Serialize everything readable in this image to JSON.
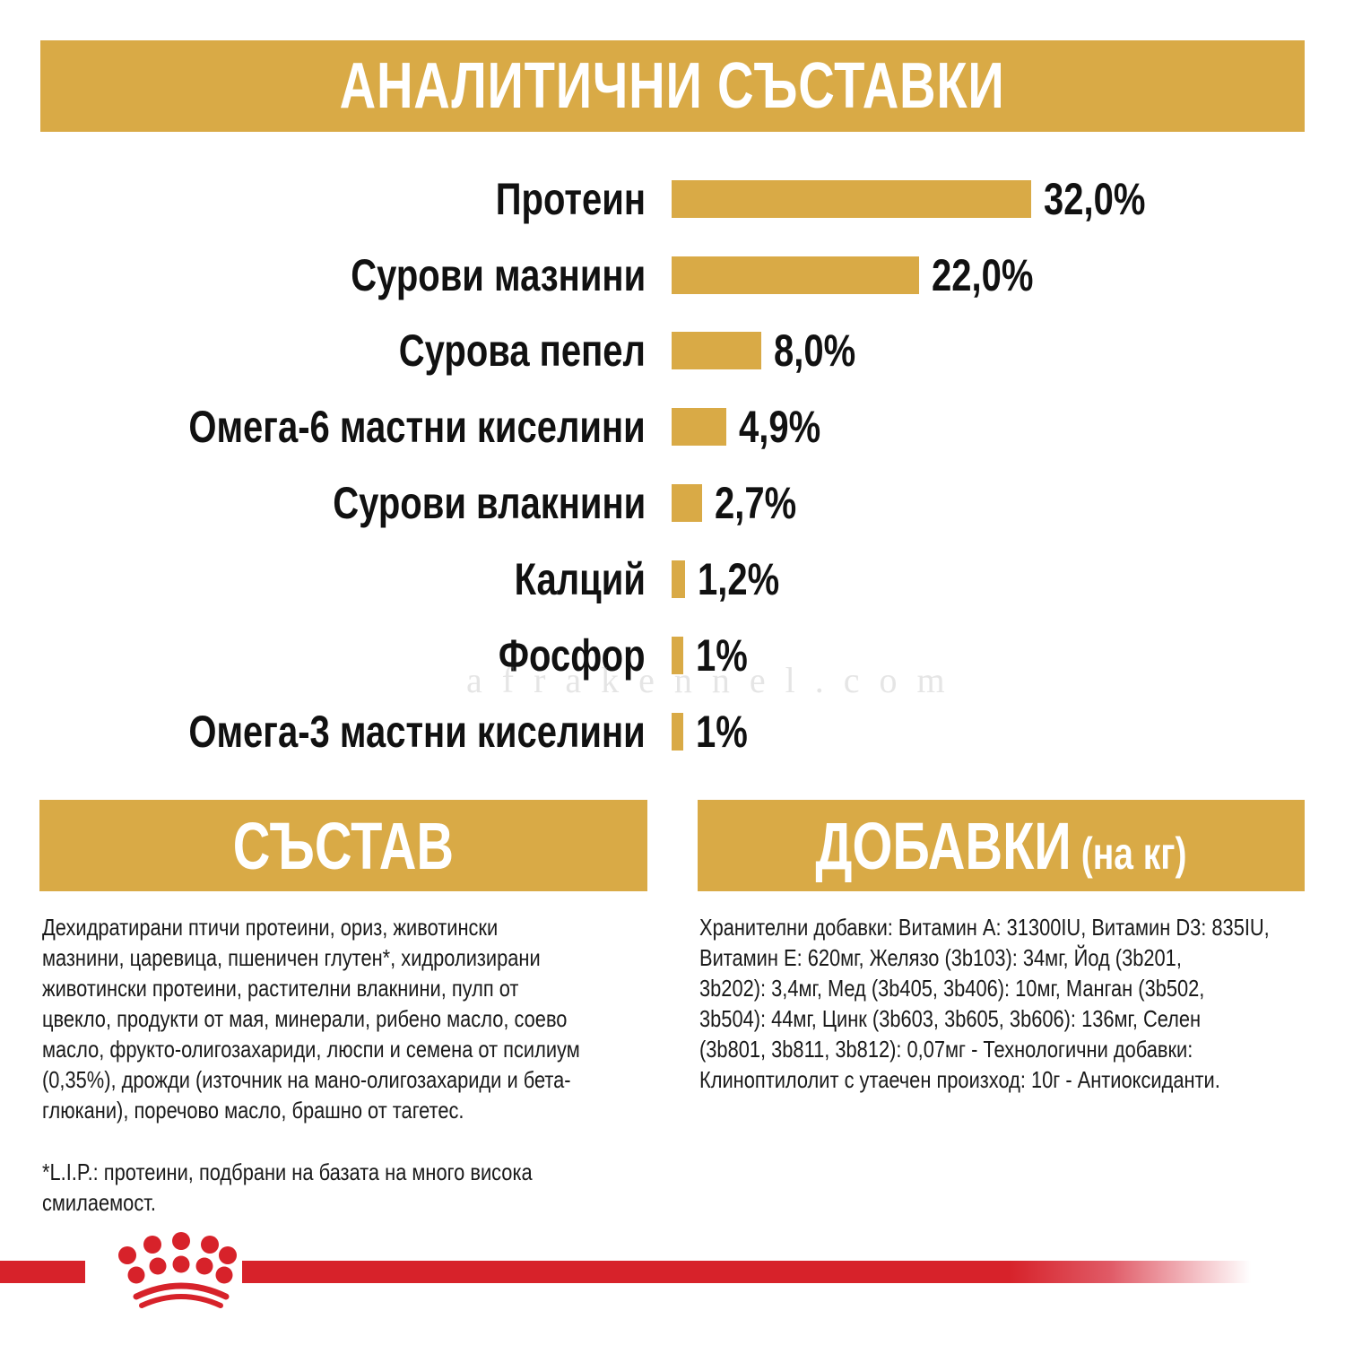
{
  "header": {
    "title": "АНАЛИТИЧНИ СЪСТАВКИ"
  },
  "chart_data": {
    "type": "bar",
    "orientation": "horizontal",
    "title": "АНАЛИТИЧНИ СЪСТАВКИ",
    "xlabel": "",
    "ylabel": "",
    "grid": false,
    "legend": null,
    "categories": [
      "Протеин",
      "Сурови мазнини",
      "Сурова пепел",
      "Омега-6 мастни киселини",
      "Сурови влакнини",
      "Калций",
      "Фосфор",
      "Омега-3 мастни киселини"
    ],
    "values": [
      32.0,
      22.0,
      8.0,
      4.9,
      2.7,
      1.2,
      1,
      1
    ],
    "value_labels": [
      "32,0%",
      "22,0%",
      "8,0%",
      "4,9%",
      "2,7%",
      "1,2%",
      "1%",
      "1%"
    ],
    "unit": "%",
    "bar_color": "#D9AA46"
  },
  "rows": [
    {
      "label": "Протеин",
      "value": "32,0%"
    },
    {
      "label": "Сурови мазнини",
      "value": "22,0%"
    },
    {
      "label": "Сурова пепел",
      "value": "8,0%"
    },
    {
      "label": "Омега-6 мастни киселини",
      "value": "4,9%"
    },
    {
      "label": "Сурови влакнини",
      "value": "2,7%"
    },
    {
      "label": "Калций",
      "value": "1,2%"
    },
    {
      "label": "Фосфор",
      "value": "1%"
    },
    {
      "label": "Омега-3 мастни киселини",
      "value": "1%"
    }
  ],
  "composition": {
    "title": "СЪСТАВ",
    "text": "Дехидратирани птичи протеини, ориз, животински мазнини, царевица, пшеничен глутен*, хидролизирани животински протеини, растителни влакнини, пулп от цвекло, продукти от мая, минерали, рибено масло, соево масло, фрукто-олигозахариди, люспи и семена от псилиум (0,35%), дрожди (източник на мано-олигозахариди и бета-глюкани), поречово масло, брашно от тагетес.",
    "lines": [
      "Дехидратирани птичи протеини, ориз, животински",
      "мазнини, царевица, пшеничен глутен*, хидролизирани",
      "животински протеини, растителни влакнини, пулп от",
      "цвекло, продукти от мая, минерали, рибено масло, соево",
      "масло, фрукто-олигозахариди, люспи и семена от псилиум",
      "(0,35%), дрожди (източник на мано-олигозахариди и бета-",
      "глюкани), поречово масло, брашно от тагетес."
    ],
    "footnote_lines": [
      "*L.I.P.: протеини, подбрани на базата на много висока",
      "смилаемост."
    ]
  },
  "additives": {
    "title": "ДОБАВКИ",
    "title_suffix": "(на кг)",
    "lines": [
      "Хранителни добавки: Витамин А: 31300IU, Витамин D3: 835IU,",
      "Витамин Е: 620мг, Желязо (3b103): 34мг, Йод (3b201,",
      "3b202): 3,4мг, Мед (3b405, 3b406): 10мг, Манган (3b502,",
      "3b504): 44мг, Цинк (3b603, 3b605, 3b606): 136мг, Селен",
      "(3b801, 3b811, 3b812): 0,07мг - Технологични добавки:",
      "Клиноптилолит с утаечен произход: 10г - Антиоксиданти."
    ]
  },
  "watermark": "afrakennel.com",
  "colors": {
    "gold": "#D9AA46",
    "brand_red": "#D7222A",
    "text": "#111111"
  }
}
